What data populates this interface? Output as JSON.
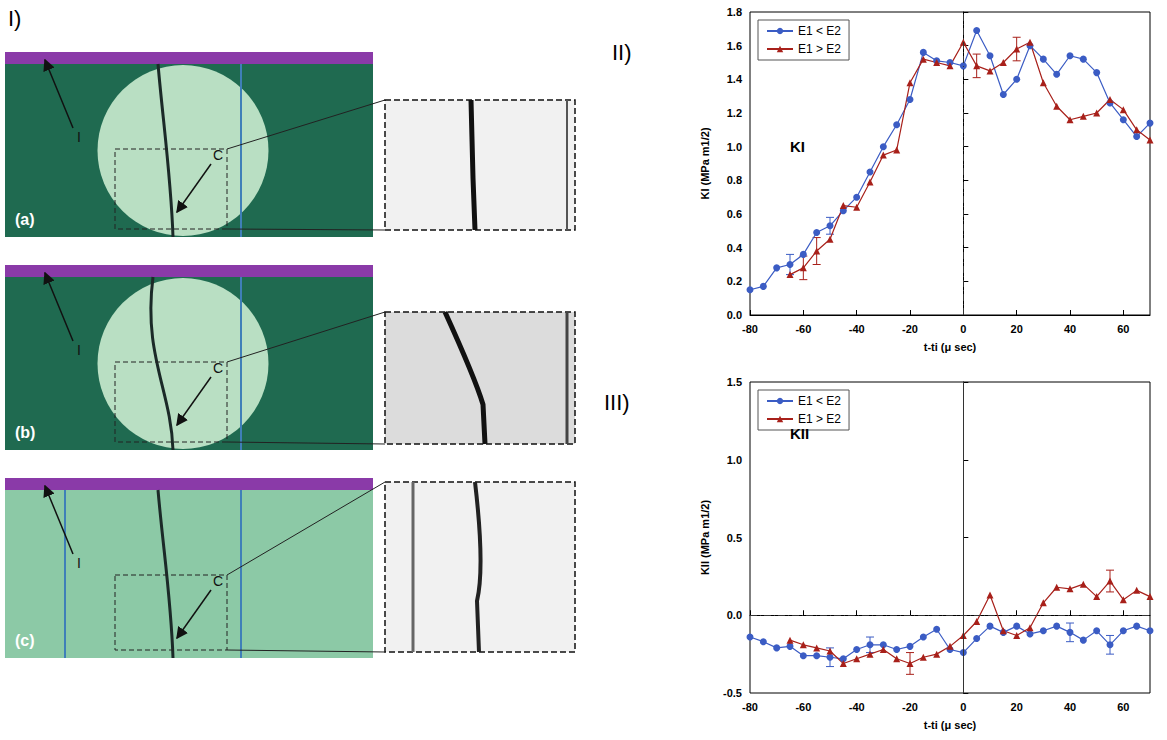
{
  "figure": {
    "panel_labels": [
      "I)",
      "II)",
      "III)"
    ],
    "photos": [
      {
        "label": "(a)",
        "interface_label": "I",
        "crack_label": "C"
      },
      {
        "label": "(b)",
        "interface_label": "I",
        "crack_label": "C"
      },
      {
        "label": "(c)",
        "interface_label": "I",
        "crack_label": "C"
      }
    ]
  },
  "chart_data": [
    {
      "type": "line",
      "annotation": "KI",
      "x_label": "t-ti (μ sec)",
      "y_label": "KI (MPa m1/2)",
      "xlim": [
        -80,
        70
      ],
      "xticks": [
        -80,
        -60,
        -40,
        -20,
        0,
        20,
        40,
        60
      ],
      "ylim": [
        0,
        1.8
      ],
      "yticks": [
        {
          "value": 0,
          "label": "0.0"
        },
        0.2,
        0.4,
        0.6,
        0.8,
        {
          "value": 1,
          "label": "1.0"
        },
        1.2,
        1.4,
        1.6,
        1.8
      ],
      "legend": "upper left",
      "grid": false,
      "ref_lines": [
        {
          "axis": "x",
          "value": 0,
          "line_style": "dashdot"
        }
      ],
      "series": [
        {
          "name": "E1 < E2",
          "color": "#3b5cc4",
          "marker": "circle",
          "x": [
            -80,
            -75,
            -70,
            -65,
            -60,
            -55,
            -50,
            -45,
            -40,
            -35,
            -30,
            -25,
            -20,
            -15,
            -10,
            -5,
            0,
            5,
            10,
            15,
            20,
            25,
            30,
            35,
            40,
            45,
            50,
            55,
            60,
            65,
            70
          ],
          "values": [
            0.15,
            0.17,
            0.28,
            0.3,
            0.36,
            0.49,
            0.53,
            0.62,
            0.7,
            0.85,
            1.0,
            1.13,
            1.28,
            1.56,
            1.51,
            1.5,
            1.48,
            1.69,
            1.54,
            1.31,
            1.4,
            1.6,
            1.52,
            1.43,
            1.54,
            1.52,
            1.44,
            1.26,
            1.16,
            1.06,
            1.14
          ],
          "errors": [
            null,
            null,
            null,
            0.06,
            null,
            null,
            0.05,
            null,
            null,
            null,
            null,
            null,
            null,
            null,
            null,
            null,
            null,
            null,
            null,
            null,
            null,
            null,
            null,
            null,
            null,
            null,
            null,
            null,
            null,
            null,
            null
          ]
        },
        {
          "name": "E1 > E2",
          "color": "#a8201a",
          "marker": "triangle",
          "x": [
            -65,
            -60,
            -55,
            -50,
            -45,
            -40,
            -35,
            -30,
            -25,
            -20,
            -15,
            -10,
            -5,
            0,
            5,
            10,
            15,
            20,
            25,
            30,
            35,
            40,
            45,
            50,
            55,
            60,
            65,
            70
          ],
          "values": [
            0.24,
            0.28,
            0.38,
            0.45,
            0.65,
            0.64,
            0.79,
            0.95,
            0.98,
            1.38,
            1.52,
            1.5,
            1.48,
            1.62,
            1.48,
            1.45,
            1.5,
            1.58,
            1.62,
            1.38,
            1.24,
            1.16,
            1.18,
            1.2,
            1.28,
            1.22,
            1.1,
            1.04
          ],
          "errors": [
            null,
            0.07,
            0.08,
            null,
            null,
            null,
            null,
            null,
            null,
            null,
            null,
            null,
            null,
            null,
            0.07,
            null,
            null,
            0.07,
            null,
            null,
            null,
            null,
            null,
            null,
            null,
            null,
            null,
            null
          ]
        }
      ]
    },
    {
      "type": "line",
      "annotation": "KII",
      "x_label": "t-ti (μ sec)",
      "y_label": "KII (MPa m1/2)",
      "xlim": [
        -80,
        70
      ],
      "xticks": [
        -80,
        -60,
        -40,
        -20,
        0,
        20,
        40,
        60
      ],
      "ylim": [
        -0.5,
        1.5
      ],
      "yticks": [
        -0.5,
        {
          "value": 0,
          "label": "0.0"
        },
        0.5,
        {
          "value": 1,
          "label": "1.0"
        },
        1.5
      ],
      "legend": "upper left",
      "grid": false,
      "ref_lines": [
        {
          "axis": "x",
          "value": 0,
          "line_style": "solid"
        },
        {
          "axis": "y",
          "value": 0,
          "line_style": "dashdot"
        }
      ],
      "series": [
        {
          "name": "E1 < E2",
          "color": "#3b5cc4",
          "marker": "circle",
          "x": [
            -80,
            -75,
            -70,
            -65,
            -60,
            -55,
            -50,
            -45,
            -40,
            -35,
            -30,
            -25,
            -20,
            -15,
            -10,
            -5,
            0,
            5,
            10,
            15,
            20,
            25,
            30,
            35,
            40,
            45,
            50,
            55,
            60,
            65,
            70
          ],
          "values": [
            -0.14,
            -0.17,
            -0.21,
            -0.2,
            -0.26,
            -0.26,
            -0.27,
            -0.28,
            -0.22,
            -0.19,
            -0.19,
            -0.22,
            -0.2,
            -0.14,
            -0.09,
            -0.22,
            -0.24,
            -0.15,
            -0.07,
            -0.11,
            -0.07,
            -0.12,
            -0.1,
            -0.07,
            -0.11,
            -0.16,
            -0.1,
            -0.19,
            -0.1,
            -0.07,
            -0.1
          ],
          "errors": [
            null,
            null,
            null,
            null,
            null,
            null,
            0.06,
            null,
            null,
            0.05,
            null,
            null,
            null,
            null,
            null,
            null,
            null,
            null,
            null,
            null,
            null,
            null,
            null,
            null,
            0.06,
            null,
            null,
            0.06,
            null,
            null,
            null
          ]
        },
        {
          "name": "E1 > E2",
          "color": "#a8201a",
          "marker": "triangle",
          "x": [
            -65,
            -60,
            -55,
            -50,
            -45,
            -40,
            -35,
            -30,
            -25,
            -20,
            -15,
            -10,
            -5,
            0,
            5,
            10,
            15,
            20,
            25,
            30,
            35,
            40,
            45,
            50,
            55,
            60,
            65,
            70
          ],
          "values": [
            -0.16,
            -0.19,
            -0.21,
            -0.23,
            -0.31,
            -0.28,
            -0.25,
            -0.22,
            -0.28,
            -0.31,
            -0.27,
            -0.25,
            -0.2,
            -0.13,
            -0.04,
            0.13,
            -0.1,
            -0.13,
            -0.08,
            0.08,
            0.18,
            0.17,
            0.2,
            0.12,
            0.22,
            0.1,
            0.16,
            0.12
          ],
          "errors": [
            null,
            null,
            null,
            null,
            null,
            null,
            null,
            null,
            null,
            0.07,
            null,
            null,
            null,
            null,
            null,
            null,
            null,
            null,
            null,
            null,
            null,
            null,
            null,
            null,
            0.07,
            null,
            null,
            null
          ]
        }
      ]
    }
  ]
}
